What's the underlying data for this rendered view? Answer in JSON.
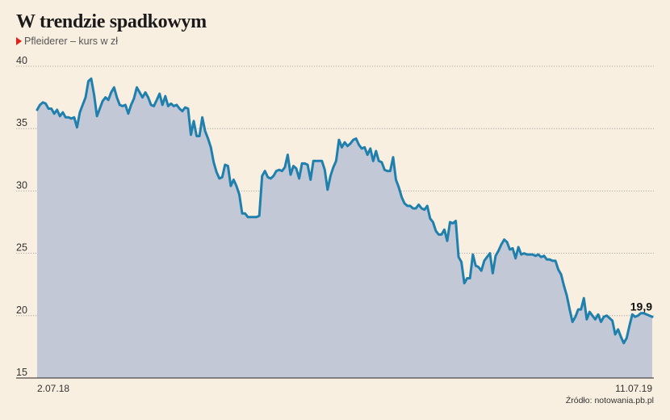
{
  "chart_data": {
    "type": "area",
    "title": "W trendzie spadkowym",
    "subtitle": "Pfleiderer – kurs w zł",
    "source": "Źródło: notowania.pb.pl",
    "x_start_label": "2.07.18",
    "x_end_label": "11.07.19",
    "ylim": [
      15,
      40
    ],
    "yticks": [
      15,
      20,
      25,
      30,
      35,
      40
    ],
    "grid": true,
    "last_value_label": "19,9",
    "colors": {
      "line": "#1f7fad",
      "fill": "#c2c8d6",
      "grid": "#999999",
      "marker": "#e0231b"
    },
    "series": [
      {
        "values": [
          36.5,
          36.9,
          37.1,
          37.0,
          36.6,
          36.6,
          36.2,
          36.5,
          36.0,
          36.3,
          35.9,
          35.9,
          35.8,
          35.9,
          35.1,
          36.3,
          36.9,
          37.5,
          38.8,
          39.0,
          37.7,
          36.0,
          36.6,
          37.2,
          37.5,
          37.3,
          37.9,
          38.3,
          37.5,
          36.9,
          36.8,
          36.9,
          36.2,
          36.9,
          37.4,
          38.3,
          37.9,
          37.5,
          37.9,
          37.5,
          36.9,
          36.8,
          37.3,
          37.8,
          36.9,
          37.6,
          36.8,
          37.0,
          36.8,
          36.9,
          36.6,
          36.4,
          36.7,
          36.6,
          34.5,
          35.6,
          34.4,
          34.4,
          35.9,
          34.8,
          34.2,
          33.5,
          32.3,
          31.5,
          31.0,
          31.1,
          32.1,
          32.0,
          30.4,
          30.9,
          30.4,
          29.7,
          28.2,
          28.2,
          27.9,
          27.9,
          27.9,
          27.9,
          28.0,
          31.2,
          31.6,
          31.1,
          31.0,
          31.2,
          31.6,
          31.7,
          31.6,
          31.9,
          32.9,
          31.3,
          32.0,
          31.8,
          31.0,
          32.2,
          32.2,
          32.1,
          30.9,
          32.4,
          32.4,
          32.4,
          32.4,
          31.7,
          30.1,
          31.2,
          31.9,
          32.4,
          34.1,
          33.5,
          33.9,
          33.6,
          33.8,
          34.1,
          34.2,
          33.7,
          33.4,
          33.5,
          32.9,
          33.4,
          32.4,
          33.2,
          32.4,
          32.3,
          31.7,
          31.6,
          31.6,
          32.7,
          30.9,
          30.3,
          29.5,
          29.0,
          28.8,
          28.8,
          28.6,
          28.6,
          28.9,
          28.6,
          28.5,
          28.8,
          27.8,
          27.5,
          26.8,
          26.5,
          26.5,
          26.9,
          26.0,
          27.5,
          27.4,
          27.6,
          24.7,
          24.3,
          22.6,
          23.0,
          23.0,
          24.9,
          24.0,
          23.9,
          23.6,
          24.4,
          24.7,
          25.0,
          23.4,
          24.8,
          25.2,
          25.7,
          26.1,
          25.9,
          25.3,
          25.4,
          24.6,
          25.5,
          24.9,
          25.0,
          24.9,
          24.9,
          24.9,
          24.8,
          24.9,
          24.7,
          24.8,
          24.5,
          24.5,
          24.4,
          24.4,
          23.7,
          23.3,
          22.4,
          21.6,
          20.5,
          19.5,
          19.9,
          20.5,
          20.5,
          21.4,
          19.7,
          20.3,
          20.0,
          19.7,
          20.1,
          19.5,
          19.9,
          20.0,
          19.8,
          19.6,
          18.5,
          18.9,
          18.3,
          17.8,
          18.2,
          19.2,
          20.1,
          19.9,
          20.0,
          20.2,
          20.2,
          20.1,
          20.0,
          19.9
        ]
      }
    ]
  }
}
